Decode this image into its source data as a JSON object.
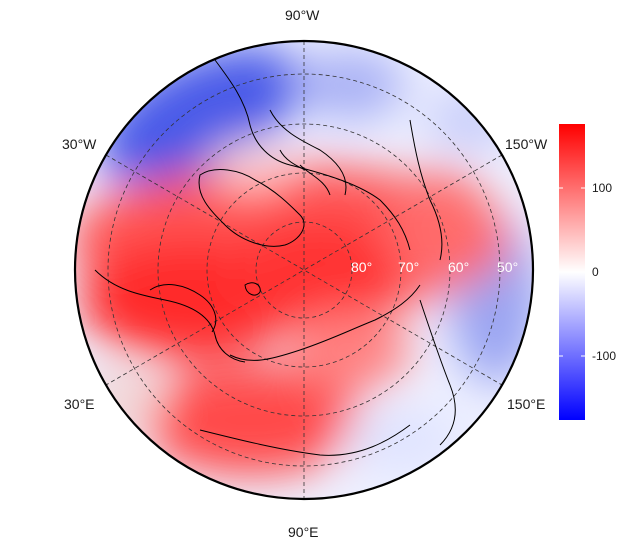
{
  "map": {
    "projection": "north-polar-stereographic",
    "longitude_labels": {
      "top": "90°W",
      "upper_left": "30°W",
      "upper_right": "150°W",
      "lower_left": "30°E",
      "lower_right": "150°E",
      "bottom": "90°E"
    },
    "latitude_labels": [
      "80°",
      "70°",
      "60°",
      "50°"
    ],
    "latitude_label_color": "#ffffff",
    "graticule_style": "dashed",
    "coastline_color": "#000000"
  },
  "colorbar": {
    "ticks": [
      "100",
      "0",
      "-100"
    ],
    "tick_values": [
      100,
      0,
      -100
    ],
    "range": [
      -175,
      175
    ],
    "colors": {
      "low": "#0000ff",
      "mid": "#ffffff",
      "high": "#ff0000"
    }
  }
}
